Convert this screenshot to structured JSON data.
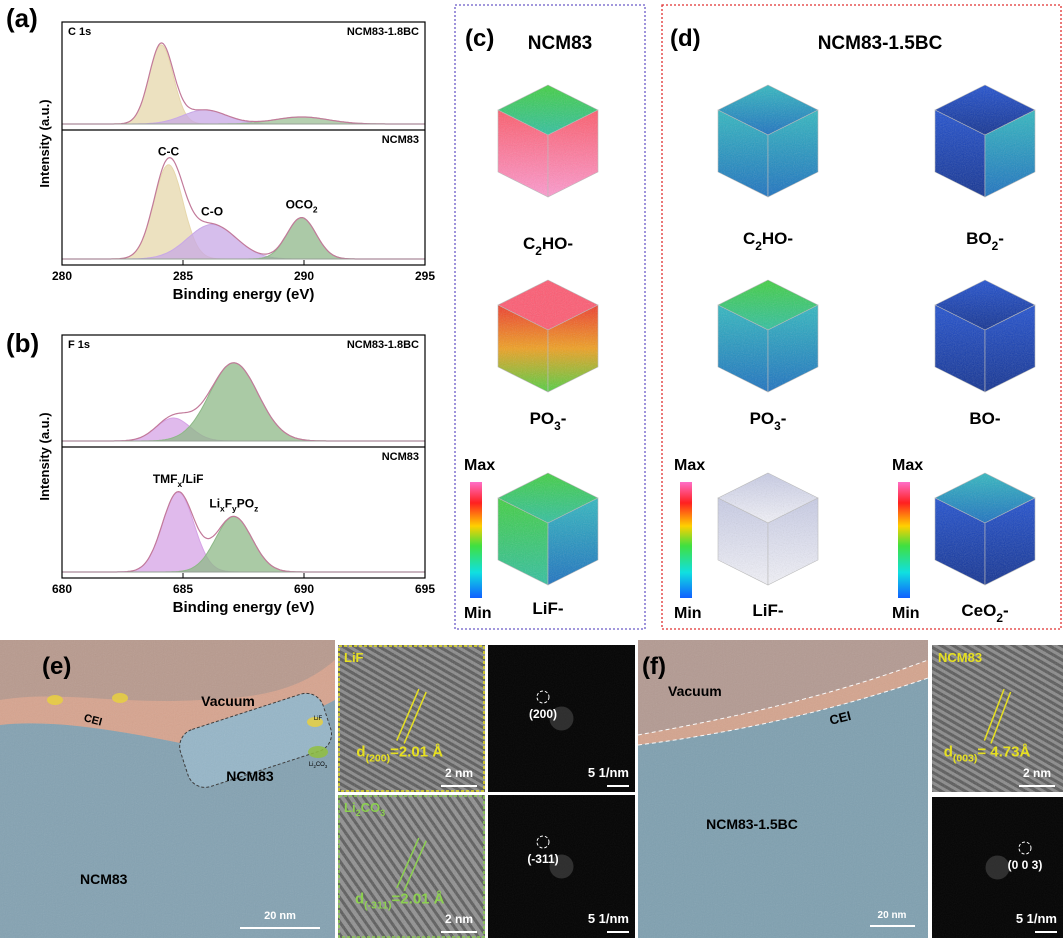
{
  "panels": {
    "a": {
      "label": "(a)",
      "core_level": "C 1s",
      "x_label": "Binding energy (eV)",
      "y_label": "Intensity (a.u.)",
      "xlim": [
        280,
        295
      ],
      "xticks": [
        280,
        285,
        290,
        295
      ],
      "spectra": [
        {
          "sample": "NCM83-1.8BC",
          "peaks": [
            {
              "center": 284.1,
              "height": 0.9,
              "sigma": 0.5,
              "color": "#e6d7ab"
            },
            {
              "center": 285.9,
              "height": 0.16,
              "sigma": 0.9,
              "color": "#c8a8e6"
            },
            {
              "center": 289.9,
              "height": 0.08,
              "sigma": 1.1,
              "color": "#9cc095"
            }
          ]
        },
        {
          "sample": "NCM83",
          "peaks": [
            {
              "label": "C-C",
              "center": 284.4,
              "height": 0.82,
              "sigma": 0.6,
              "color": "#e6d7ab"
            },
            {
              "label": "C-O",
              "center": 286.2,
              "height": 0.3,
              "sigma": 1.0,
              "color": "#c8a8e6"
            },
            {
              "label": "OCO<sub>2</sub>",
              "center": 289.9,
              "height": 0.36,
              "sigma": 0.6,
              "color": "#8fb78a"
            }
          ]
        }
      ]
    },
    "b": {
      "label": "(b)",
      "core_level": "F 1s",
      "x_label": "Binding energy (eV)",
      "y_label": "Intensity (a.u.)",
      "xlim": [
        680,
        695
      ],
      "xticks": [
        680,
        685,
        690,
        695
      ],
      "spectra": [
        {
          "sample": "NCM83-1.8BC",
          "peaks": [
            {
              "center": 684.6,
              "height": 0.25,
              "sigma": 0.7,
              "color": "#d6a3e6"
            },
            {
              "center": 687.1,
              "height": 0.85,
              "sigma": 1.0,
              "color": "#8db887"
            }
          ]
        },
        {
          "sample": "NCM83",
          "peaks": [
            {
              "label": "TMF<sub>x</sub>/LiF",
              "center": 684.8,
              "height": 0.72,
              "sigma": 0.65,
              "color": "#d6a3e6"
            },
            {
              "label": "Li<sub>x</sub>F<sub>y</sub>PO<sub>z</sub>",
              "center": 687.1,
              "height": 0.5,
              "sigma": 0.75,
              "color": "#8db887"
            }
          ]
        }
      ]
    },
    "c": {
      "label": "(c)",
      "title": "NCM83",
      "species": [
        "C<sub>2</sub>HO-",
        "PO<sub>3</sub>-",
        "LiF-"
      ],
      "scales": [
        {
          "max": "Max",
          "min": "Min"
        }
      ]
    },
    "d": {
      "label": "(d)",
      "title": "NCM83-1.5BC",
      "species": [
        "C<sub>2</sub>HO-",
        "BO<sub>2</sub>-",
        "PO<sub>3</sub>-",
        "BO-",
        "LiF-",
        "CeO<sub>2</sub>-"
      ],
      "scales": [
        {
          "max": "Max",
          "min": "Min"
        },
        {
          "max": "Max",
          "min": "Min"
        }
      ]
    },
    "e": {
      "label": "(e)",
      "vacuum": "Vacuum",
      "cei": "CEI",
      "particle": "NCM83",
      "bulk": "NCM83",
      "scale_bar": "20 nm",
      "marker_lif": "LiF",
      "marker_li2co3": "Li<sub>2</sub>CO<sub>3</sub>",
      "insets": [
        {
          "phase": "LiF",
          "spacing": "d<sub>(200)</sub>=2.01 Å",
          "scale_bar": "2 nm",
          "spot": "(200)",
          "fft_scale": "5 1/nm"
        },
        {
          "phase": "Li<sub>2</sub>CO<sub>3</sub>",
          "spacing": "d<sub>(-311)</sub>=2.01 Å",
          "scale_bar": "2 nm",
          "spot": "(-311)",
          "fft_scale": "5 1/nm"
        }
      ]
    },
    "f": {
      "label": "(f)",
      "vacuum": "Vacuum",
      "cei": "CEI",
      "bulk": "NCM83-1.5BC",
      "scale_bar": "20 nm",
      "inset": {
        "phase": "NCM83",
        "spacing": "d<sub>(003)</sub>= 4.73Å",
        "scale_bar": "2 nm",
        "spot": "(0 0 3)",
        "fft_scale": "5 1/nm"
      }
    }
  }
}
